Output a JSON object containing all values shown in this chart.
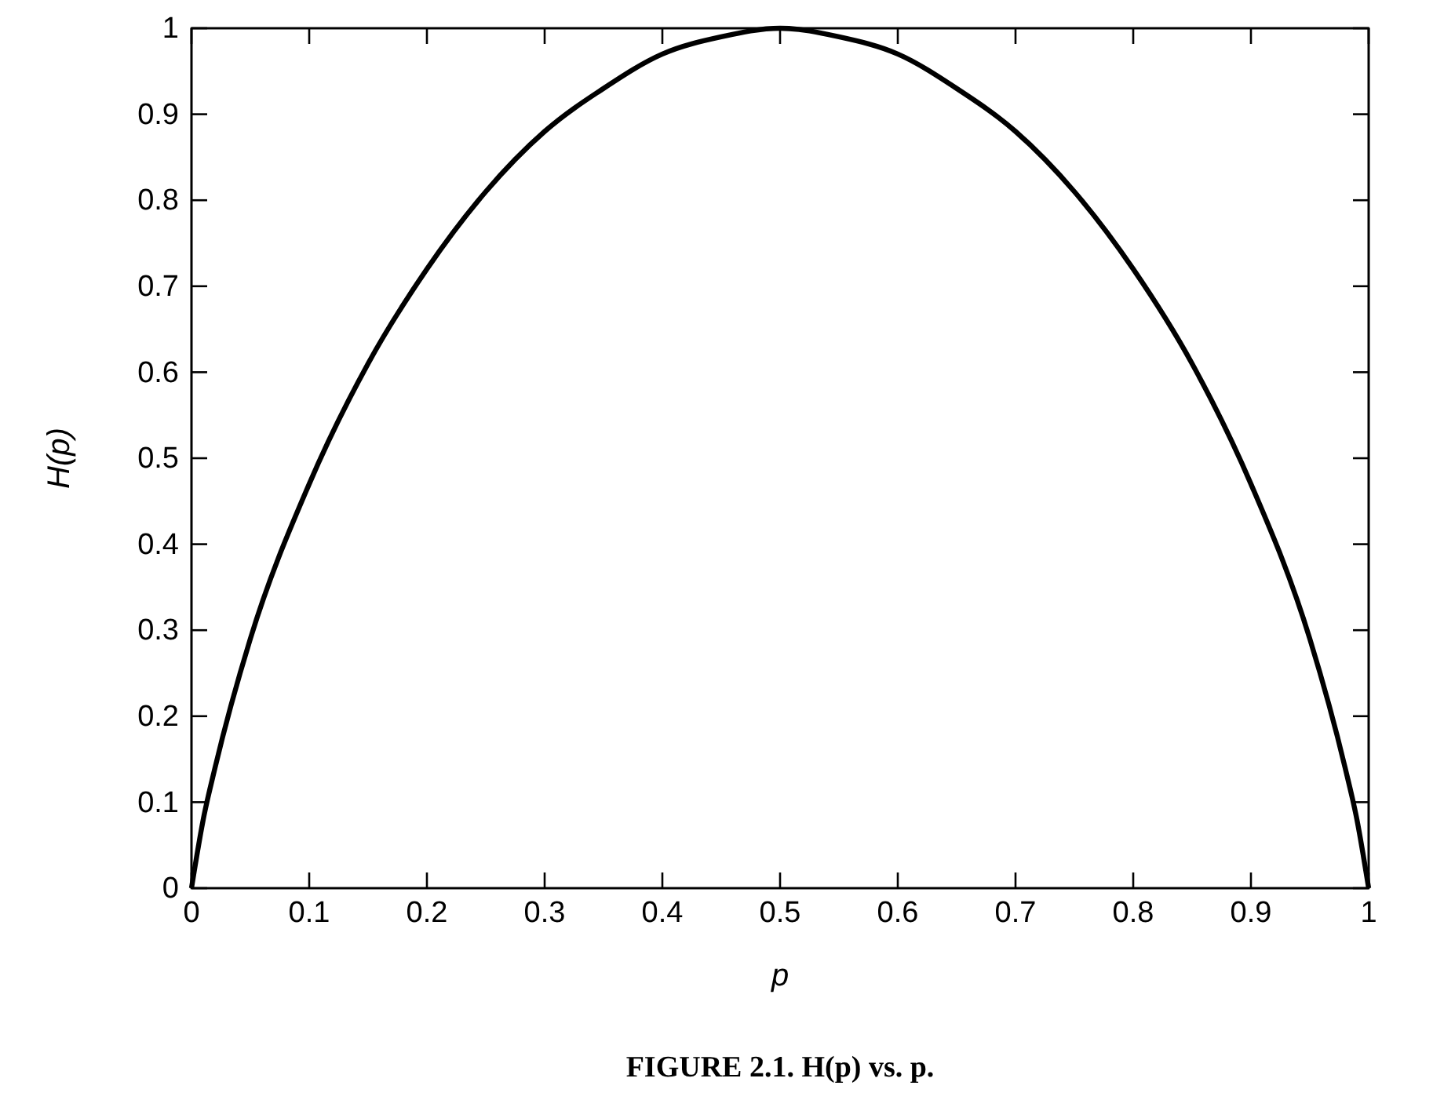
{
  "chart_data": {
    "type": "line",
    "xlabel": "p",
    "ylabel": "H(p)",
    "x": [
      0,
      0.01,
      0.02,
      0.05,
      0.1,
      0.15,
      0.2,
      0.25,
      0.3,
      0.35,
      0.4,
      0.45,
      0.5,
      0.55,
      0.6,
      0.65,
      0.7,
      0.75,
      0.8,
      0.85,
      0.9,
      0.95,
      0.98,
      0.99,
      1
    ],
    "series": [
      {
        "color": "#000000",
        "values": [
          0,
          0.08,
          0.14,
          0.29,
          0.47,
          0.61,
          0.72,
          0.81,
          0.88,
          0.93,
          0.97,
          0.99,
          1,
          0.99,
          0.97,
          0.93,
          0.88,
          0.81,
          0.72,
          0.61,
          0.47,
          0.29,
          0.14,
          0.08,
          0
        ]
      }
    ],
    "xlim": [
      0,
      1
    ],
    "ylim": [
      0,
      1
    ],
    "xticks": [
      0,
      0.1,
      0.2,
      0.3,
      0.4,
      0.5,
      0.6,
      0.7,
      0.8,
      0.9,
      1
    ],
    "yticks": [
      0,
      0.1,
      0.2,
      0.3,
      0.4,
      0.5,
      0.6,
      0.7,
      0.8,
      0.9,
      1
    ],
    "marker": "none",
    "line_style": "solid",
    "annotations": [
      "FIGURE 2.1. H(p) vs. p."
    ]
  }
}
